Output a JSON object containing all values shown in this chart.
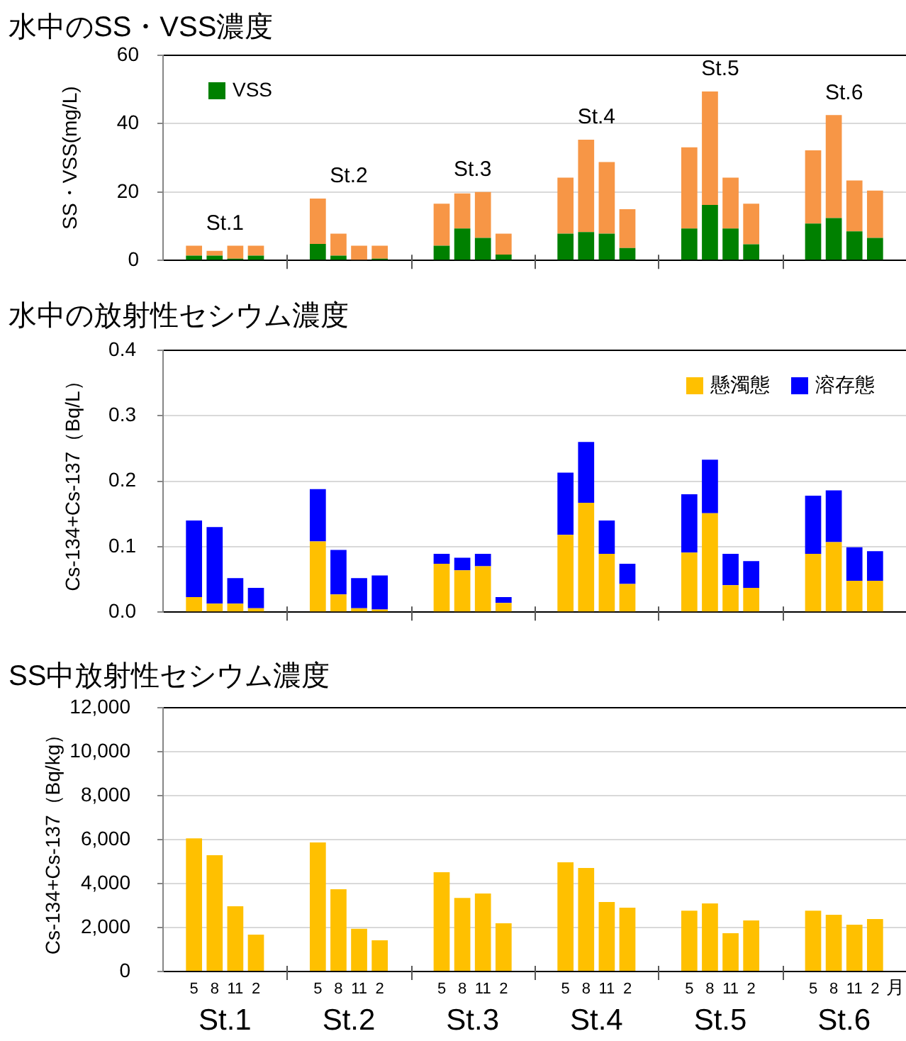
{
  "chart_data": [
    {
      "type": "bar",
      "title": "水中のSS・VSS濃度",
      "ylabel": "SS・VSS(mg/L)",
      "categories": [
        null,
        "5",
        "8",
        "11",
        "2",
        null,
        null,
        "5",
        "8",
        "11",
        "2",
        null,
        null,
        "5",
        "8",
        "11",
        "2",
        null,
        null,
        "5",
        "8",
        "11",
        "2",
        null,
        null,
        "5",
        "8",
        "11",
        "2",
        null,
        null,
        "5",
        "8",
        "11",
        "2",
        null
      ],
      "series": [
        {
          "name": "VSS",
          "color": "#008000",
          "values": [
            null,
            1.4,
            1.4,
            0.5,
            1.4,
            null,
            null,
            4.8,
            1.4,
            null,
            0.5,
            null,
            null,
            4.3,
            9.3,
            6.6,
            1.7,
            null,
            null,
            7.8,
            8.3,
            7.8,
            3.6,
            null,
            null,
            9.3,
            16.2,
            9.3,
            4.7,
            null,
            null,
            10.8,
            12.4,
            8.5,
            6.6,
            null
          ]
        },
        {
          "color": "#f79646",
          "values": [
            null,
            2.9,
            1.4,
            3.8,
            2.9,
            null,
            null,
            13.3,
            6.4,
            4.3,
            3.8,
            null,
            null,
            12.3,
            10.3,
            13.4,
            6.1,
            null,
            null,
            16.4,
            27,
            21,
            11.4,
            null,
            null,
            23.8,
            33.2,
            14.9,
            11.9,
            null,
            null,
            21.4,
            30.1,
            14.9,
            13.8,
            null
          ]
        }
      ],
      "stacked": true,
      "ylim": [
        0,
        60
      ],
      "yticks": [
        0,
        20,
        40,
        60
      ],
      "grid": "y",
      "legend": "top left",
      "tick_labels": "y",
      "annotations": [
        "St.1",
        "St.2",
        "St.3",
        "St.4",
        "St.5",
        "St.6"
      ]
    },
    {
      "type": "bar",
      "title": "水中の放射性セシウム濃度",
      "ylabel": "Cs-134+Cs-137（Bq/L）",
      "categories": [
        null,
        "5",
        "8",
        "11",
        "2",
        null,
        null,
        "5",
        "8",
        "11",
        "2",
        null,
        null,
        "5",
        "8",
        "11",
        "2",
        null,
        null,
        "5",
        "8",
        "11",
        "2",
        null,
        null,
        "5",
        "8",
        "11",
        "2",
        null,
        null,
        "5",
        "8",
        "11",
        "2",
        null
      ],
      "series": [
        {
          "name": "懸濁態",
          "color": "#ffc000",
          "values": [
            null,
            0.023,
            0.013,
            0.013,
            0.006,
            null,
            null,
            0.108,
            0.027,
            0.006,
            0.004,
            null,
            null,
            0.074,
            0.064,
            0.07,
            0.014,
            null,
            null,
            0.118,
            0.167,
            0.089,
            0.043,
            null,
            null,
            0.091,
            0.151,
            0.041,
            0.037,
            null,
            null,
            0.089,
            0.107,
            0.048,
            0.048,
            null
          ]
        },
        {
          "name": "溶存態",
          "color": "#0000ff",
          "values": [
            null,
            0.117,
            0.117,
            0.039,
            0.031,
            null,
            null,
            0.08,
            0.068,
            0.046,
            0.052,
            null,
            null,
            0.015,
            0.019,
            0.019,
            0.009,
            null,
            null,
            0.095,
            0.093,
            0.051,
            0.031,
            null,
            null,
            0.089,
            0.082,
            0.048,
            0.041,
            null,
            null,
            0.089,
            0.079,
            0.051,
            0.045,
            null
          ]
        }
      ],
      "stacked": true,
      "ylim": [
        0,
        0.4
      ],
      "yticks": [
        {
          "value": 0,
          "label": "0.0"
        },
        0.1,
        0.2,
        0.3,
        0.4
      ],
      "grid": "y",
      "legend": "top right",
      "tick_labels": "y"
    },
    {
      "type": "bar",
      "title": "SS中放射性セシウム濃度",
      "xlabel": "月",
      "ylabel": "Cs-134+Cs-137（Bq/kg）",
      "categories": [
        null,
        "5",
        "8",
        "11",
        "2",
        null,
        null,
        "5",
        "8",
        "11",
        "2",
        null,
        null,
        "5",
        "8",
        "11",
        "2",
        null,
        null,
        "5",
        "8",
        "11",
        "2",
        null,
        null,
        "5",
        "8",
        "11",
        "2",
        null,
        null,
        "5",
        "8",
        "11",
        "2",
        null
      ],
      "color": "#ffc000",
      "values": [
        null,
        6060,
        5290,
        2970,
        1680,
        null,
        null,
        5870,
        3740,
        1940,
        1420,
        null,
        null,
        4520,
        3350,
        3550,
        2190,
        null,
        null,
        4970,
        4710,
        3160,
        2900,
        null,
        null,
        2770,
        3100,
        1740,
        2320,
        null,
        null,
        2770,
        2580,
        2130,
        2390,
        null
      ],
      "ylim": [
        0,
        12000
      ],
      "yticks": [
        0,
        {
          "value": 2000,
          "label": "2,000"
        },
        {
          "value": 4000,
          "label": "4,000"
        },
        {
          "value": 6000,
          "label": "6,000"
        },
        {
          "value": 8000,
          "label": "8,000"
        },
        {
          "value": 10000,
          "label": "10,000"
        },
        {
          "value": 12000,
          "label": "12,000"
        }
      ],
      "grid": "y",
      "annotations": [
        "St.1",
        "St.2",
        "St.3",
        "St.4",
        "St.5",
        "St.6"
      ]
    }
  ]
}
